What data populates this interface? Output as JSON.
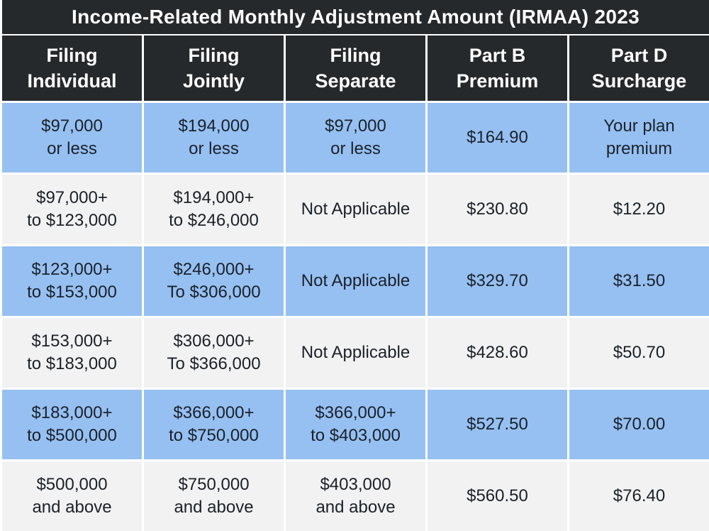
{
  "title": "Income-Related Monthly Adjustment Amount (IRMAA) 2023",
  "colors": {
    "header_bg": "#26292c",
    "header_text": "#ffffff",
    "row_blue": "#96c0f2",
    "row_gray": "#f2f2f2",
    "grid_line": "#ffffff",
    "cell_text": "#1b2129"
  },
  "table": {
    "headers": [
      "Filing\nIndividual",
      "Filing\nJointly",
      "Filing\nSeparate",
      "Part B\nPremium",
      "Part D\nSurcharge"
    ],
    "rows": [
      {
        "cells": [
          "$97,000\nor less",
          "$194,000\nor less",
          "$97,000\nor less",
          "$164.90",
          "Your plan\npremium"
        ]
      },
      {
        "cells": [
          "$97,000+\nto $123,000",
          "$194,000+\nto $246,000",
          "Not Applicable",
          "$230.80",
          "$12.20"
        ]
      },
      {
        "cells": [
          "$123,000+\nto $153,000",
          "$246,000+\nTo $306,000",
          "Not Applicable",
          "$329.70",
          "$31.50"
        ]
      },
      {
        "cells": [
          "$153,000+\nto $183,000",
          "$306,000+\nTo $366,000",
          "Not Applicable",
          "$428.60",
          "$50.70"
        ]
      },
      {
        "cells": [
          "$183,000+\nto $500,000",
          "$366,000+\nto $750,000",
          "$366,000+\nto $403,000",
          "$527.50",
          "$70.00"
        ]
      },
      {
        "cells": [
          "$500,000\nand above",
          "$750,000\nand above",
          "$403,000\nand above",
          "$560.50",
          "$76.40"
        ]
      }
    ]
  },
  "chart_data": {
    "type": "table",
    "title": "Income-Related Monthly Adjustment Amount (IRMAA) 2023",
    "columns": [
      "Filing Individual",
      "Filing Jointly",
      "Filing Separate",
      "Part B Premium",
      "Part D Surcharge"
    ],
    "rows": [
      [
        "$97,000 or less",
        "$194,000 or less",
        "$97,000 or less",
        "$164.90",
        "Your plan premium"
      ],
      [
        "$97,000+ to $123,000",
        "$194,000+ to $246,000",
        "Not Applicable",
        "$230.80",
        "$12.20"
      ],
      [
        "$123,000+ to $153,000",
        "$246,000+ To $306,000",
        "Not Applicable",
        "$329.70",
        "$31.50"
      ],
      [
        "$153,000+ to $183,000",
        "$306,000+ To $366,000",
        "Not Applicable",
        "$428.60",
        "$50.70"
      ],
      [
        "$183,000+ to $500,000",
        "$366,000+ to $750,000",
        "$366,000+ to $403,000",
        "$527.50",
        "$70.00"
      ],
      [
        "$500,000 and above",
        "$750,000 and above",
        "$403,000 and above",
        "$560.50",
        "$76.40"
      ]
    ],
    "part_b_premiums": [
      164.9,
      230.8,
      329.7,
      428.6,
      527.5,
      560.5
    ],
    "part_d_surcharges": [
      null,
      12.2,
      31.5,
      50.7,
      70.0,
      76.4
    ],
    "layout": "alternating row colors: blue, light gray; dark header band"
  }
}
